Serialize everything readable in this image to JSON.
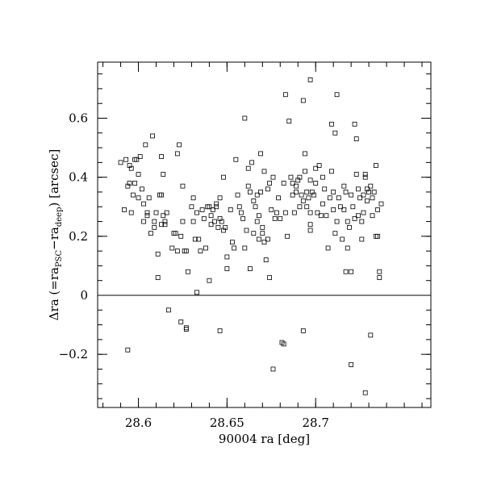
{
  "chart_data": {
    "type": "scatter",
    "xlabel": "90004 ra [deg]",
    "ylabel": {
      "prefix": "Δra (=ra",
      "sub1": "PSC",
      "mid": "−ra",
      "sub2": "deep",
      "suffix": ") [arcsec]"
    },
    "xlim": [
      28.577,
      28.765
    ],
    "ylim": [
      -0.38,
      0.79
    ],
    "xticks": [
      28.6,
      28.65,
      28.7
    ],
    "xtick_labels": [
      "28.6",
      "28.65",
      "28.7"
    ],
    "x_minor_step": 0.01,
    "yticks": [
      -0.2,
      0,
      0.2,
      0.4,
      0.6
    ],
    "ytick_labels": [
      "−0.2",
      "0",
      "0.2",
      "0.4",
      "0.6"
    ],
    "y_minor_step": 0.05,
    "reference_line_y": 0,
    "marker": "open-square",
    "grid": false,
    "points": [
      [
        28.59,
        0.45
      ],
      [
        28.592,
        0.29
      ],
      [
        28.593,
        0.46
      ],
      [
        28.594,
        0.37
      ],
      [
        28.595,
        0.38
      ],
      [
        28.595,
        0.44
      ],
      [
        28.596,
        0.43
      ],
      [
        28.596,
        0.28
      ],
      [
        28.597,
        0.34
      ],
      [
        28.598,
        0.46
      ],
      [
        28.598,
        0.38
      ],
      [
        28.599,
        0.46
      ],
      [
        28.6,
        0.33
      ],
      [
        28.601,
        0.47
      ],
      [
        28.6,
        0.41
      ],
      [
        28.602,
        0.36
      ],
      [
        28.603,
        0.31
      ],
      [
        28.603,
        0.25
      ],
      [
        28.604,
        0.51
      ],
      [
        28.605,
        0.28
      ],
      [
        28.605,
        0.27
      ],
      [
        28.606,
        0.33
      ],
      [
        28.607,
        0.21
      ],
      [
        28.608,
        0.54
      ],
      [
        28.609,
        0.25
      ],
      [
        28.609,
        0.23
      ],
      [
        28.61,
        0.28
      ],
      [
        28.611,
        0.14
      ],
      [
        28.611,
        0.06
      ],
      [
        28.612,
        0.34
      ],
      [
        28.613,
        0.34
      ],
      [
        28.613,
        0.24
      ],
      [
        28.613,
        0.47
      ],
      [
        28.614,
        0.41
      ],
      [
        28.614,
        0.27
      ],
      [
        28.615,
        0.24
      ],
      [
        28.615,
        0.25
      ],
      [
        28.616,
        0.28
      ],
      [
        28.619,
        0.16
      ],
      [
        28.62,
        0.21
      ],
      [
        28.621,
        0.21
      ],
      [
        28.622,
        0.15
      ],
      [
        28.622,
        0.48
      ],
      [
        28.623,
        0.51
      ],
      [
        28.624,
        0.2
      ],
      [
        28.625,
        0.25
      ],
      [
        28.625,
        0.37
      ],
      [
        28.626,
        0.15
      ],
      [
        28.627,
        0.15
      ],
      [
        28.628,
        0.08
      ],
      [
        28.63,
        0.3
      ],
      [
        28.631,
        0.33
      ],
      [
        28.631,
        0.25
      ],
      [
        28.632,
        0.19
      ],
      [
        28.633,
        0.28
      ],
      [
        28.634,
        0.19
      ],
      [
        28.635,
        0.15
      ],
      [
        28.636,
        0.29
      ],
      [
        28.637,
        0.26
      ],
      [
        28.638,
        0.16
      ],
      [
        28.639,
        0.3
      ],
      [
        28.64,
        0.3
      ],
      [
        28.64,
        0.05
      ],
      [
        28.641,
        0.24
      ],
      [
        28.641,
        0.27
      ],
      [
        28.642,
        0.29
      ],
      [
        28.643,
        0.25
      ],
      [
        28.644,
        0.31
      ],
      [
        28.644,
        0.3
      ],
      [
        28.645,
        0.23
      ],
      [
        28.646,
        0.33
      ],
      [
        28.646,
        0.26
      ],
      [
        28.647,
        0.25
      ],
      [
        28.648,
        0.4
      ],
      [
        28.648,
        0.22
      ],
      [
        28.649,
        0.23
      ],
      [
        28.65,
        0.09
      ],
      [
        28.65,
        0.13
      ],
      [
        28.617,
        -0.05
      ],
      [
        28.624,
        -0.09
      ],
      [
        28.627,
        -0.11
      ],
      [
        28.627,
        -0.115
      ],
      [
        28.633,
        0.01
      ],
      [
        28.646,
        -0.12
      ],
      [
        28.594,
        -0.185
      ],
      [
        28.652,
        0.29
      ],
      [
        28.653,
        0.18
      ],
      [
        28.654,
        0.16
      ],
      [
        28.655,
        0.46
      ],
      [
        28.656,
        0.34
      ],
      [
        28.657,
        0.3
      ],
      [
        28.658,
        0.28
      ],
      [
        28.659,
        0.26
      ],
      [
        28.66,
        0.6
      ],
      [
        28.66,
        0.16
      ],
      [
        28.661,
        0.22
      ],
      [
        28.662,
        0.43
      ],
      [
        28.662,
        0.37
      ],
      [
        28.663,
        0.35
      ],
      [
        28.663,
        0.09
      ],
      [
        28.664,
        0.45
      ],
      [
        28.665,
        0.32
      ],
      [
        28.665,
        0.21
      ],
      [
        28.666,
        0.3
      ],
      [
        28.667,
        0.34
      ],
      [
        28.667,
        0.25
      ],
      [
        28.668,
        0.27
      ],
      [
        28.668,
        0.19
      ],
      [
        28.669,
        0.48
      ],
      [
        28.669,
        0.35
      ],
      [
        28.67,
        0.23
      ],
      [
        28.67,
        0.21
      ],
      [
        28.671,
        0.42
      ],
      [
        28.671,
        0.18
      ],
      [
        28.672,
        0.12
      ],
      [
        28.673,
        0.36
      ],
      [
        28.673,
        0.19
      ],
      [
        28.674,
        0.38
      ],
      [
        28.675,
        0.29
      ],
      [
        28.676,
        0.4
      ],
      [
        28.677,
        0.26
      ],
      [
        28.678,
        0.28
      ],
      [
        28.679,
        0.33
      ],
      [
        28.68,
        0.26
      ],
      [
        28.674,
        0.06
      ],
      [
        28.676,
        -0.25
      ],
      [
        28.681,
        -0.16
      ],
      [
        28.682,
        -0.165
      ],
      [
        28.682,
        0.38
      ],
      [
        28.683,
        0.68
      ],
      [
        28.683,
        0.28
      ],
      [
        28.684,
        0.2
      ],
      [
        28.685,
        0.59
      ],
      [
        28.686,
        0.4
      ],
      [
        28.687,
        0.38
      ],
      [
        28.687,
        0.34
      ],
      [
        28.688,
        0.28
      ],
      [
        28.689,
        0.37
      ],
      [
        28.689,
        0.35
      ],
      [
        28.69,
        0.39
      ],
      [
        28.691,
        0.4
      ],
      [
        28.691,
        0.3
      ],
      [
        28.692,
        0.34
      ],
      [
        28.693,
        0.32
      ],
      [
        28.693,
        0.66
      ],
      [
        28.694,
        0.48
      ],
      [
        28.694,
        0.42
      ],
      [
        28.695,
        0.35
      ],
      [
        28.695,
        0.3
      ],
      [
        28.696,
        0.33
      ],
      [
        28.697,
        0.73
      ],
      [
        28.697,
        0.39
      ],
      [
        28.697,
        0.28
      ],
      [
        28.697,
        0.24
      ],
      [
        28.697,
        0.22
      ],
      [
        28.698,
        0.35
      ],
      [
        28.699,
        0.34
      ],
      [
        28.7,
        0.43
      ],
      [
        28.7,
        0.38
      ],
      [
        28.701,
        0.28
      ],
      [
        28.702,
        0.44
      ],
      [
        28.703,
        0.27
      ],
      [
        28.704,
        0.4
      ],
      [
        28.704,
        0.31
      ],
      [
        28.705,
        0.36
      ],
      [
        28.706,
        0.27
      ],
      [
        28.707,
        0.16
      ],
      [
        28.708,
        0.33
      ],
      [
        28.709,
        0.42
      ],
      [
        28.709,
        0.58
      ],
      [
        28.71,
        0.35
      ],
      [
        28.71,
        0.29
      ],
      [
        28.711,
        0.55
      ],
      [
        28.711,
        0.21
      ],
      [
        28.712,
        0.68
      ],
      [
        28.712,
        0.25
      ],
      [
        28.693,
        -0.12
      ],
      [
        28.713,
        0.33
      ],
      [
        28.714,
        0.3
      ],
      [
        28.715,
        0.19
      ],
      [
        28.716,
        0.37
      ],
      [
        28.716,
        0.29
      ],
      [
        28.717,
        0.35
      ],
      [
        28.717,
        0.08
      ],
      [
        28.718,
        0.25
      ],
      [
        28.718,
        0.16
      ],
      [
        28.719,
        0.23
      ],
      [
        28.72,
        0.34
      ],
      [
        28.72,
        0.08
      ],
      [
        28.721,
        0.3
      ],
      [
        28.722,
        0.58
      ],
      [
        28.722,
        0.26
      ],
      [
        28.723,
        0.41
      ],
      [
        28.723,
        0.53
      ],
      [
        28.724,
        0.36
      ],
      [
        28.724,
        0.27
      ],
      [
        28.725,
        0.33
      ],
      [
        28.726,
        0.25
      ],
      [
        28.726,
        0.19
      ],
      [
        28.727,
        0.34
      ],
      [
        28.727,
        0.28
      ],
      [
        28.728,
        0.4
      ],
      [
        28.728,
        0.41
      ],
      [
        28.729,
        0.32
      ],
      [
        28.729,
        0.36
      ],
      [
        28.73,
        0.35
      ],
      [
        28.731,
        0.37
      ],
      [
        28.732,
        0.33
      ],
      [
        28.732,
        0.27
      ],
      [
        28.733,
        0.35
      ],
      [
        28.734,
        0.44
      ],
      [
        28.734,
        0.2
      ],
      [
        28.735,
        0.29
      ],
      [
        28.735,
        0.2
      ],
      [
        28.736,
        0.08
      ],
      [
        28.736,
        0.06
      ],
      [
        28.737,
        0.31
      ],
      [
        28.72,
        -0.235
      ],
      [
        28.728,
        -0.33
      ],
      [
        28.731,
        -0.135
      ]
    ]
  }
}
